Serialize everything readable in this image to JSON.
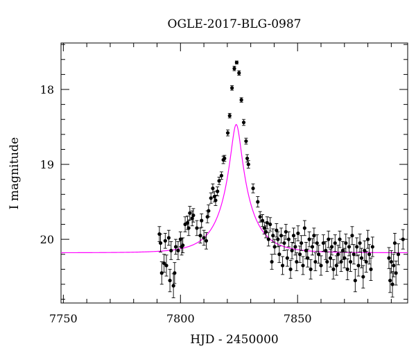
{
  "chart_data": {
    "type": "scatter",
    "title": "OGLE-2017-BLG-0987",
    "xlabel": "HJD - 2450000",
    "ylabel": "I magnitude",
    "xlim": [
      7749,
      7897
    ],
    "ylim": [
      20.85,
      17.38
    ],
    "y_inverted": true,
    "x_ticks": [
      7750,
      7800,
      7850
    ],
    "y_ticks": [
      18,
      19,
      20
    ],
    "x_minor_step": 10,
    "y_minor_step": 0.2,
    "grid": false,
    "legend": "none",
    "model_color": "#ff00ff",
    "point_color": "#000000",
    "model": {
      "t0": 7823.8,
      "u0": 0.165,
      "tE": 12.5,
      "base_mag": 20.18,
      "fs": 0.75
    },
    "points": [
      {
        "x": 7791,
        "y": 19.93,
        "e": 0.1
      },
      {
        "x": 7791.5,
        "y": 20.05,
        "e": 0.12
      },
      {
        "x": 7792,
        "y": 20.45,
        "e": 0.15
      },
      {
        "x": 7793,
        "y": 20.32,
        "e": 0.12
      },
      {
        "x": 7793.5,
        "y": 20.02,
        "e": 0.1
      },
      {
        "x": 7794,
        "y": 20.35,
        "e": 0.14
      },
      {
        "x": 7795,
        "y": 19.98,
        "e": 0.1
      },
      {
        "x": 7795.5,
        "y": 20.55,
        "e": 0.15
      },
      {
        "x": 7796,
        "y": 20.15,
        "e": 0.12
      },
      {
        "x": 7797,
        "y": 20.62,
        "e": 0.16
      },
      {
        "x": 7797.5,
        "y": 20.45,
        "e": 0.14
      },
      {
        "x": 7798,
        "y": 20.1,
        "e": 0.1
      },
      {
        "x": 7799,
        "y": 20.15,
        "e": 0.12
      },
      {
        "x": 7800,
        "y": 20.0,
        "e": 0.1
      },
      {
        "x": 7800.5,
        "y": 20.1,
        "e": 0.11
      },
      {
        "x": 7801,
        "y": 20.08,
        "e": 0.1
      },
      {
        "x": 7802,
        "y": 19.8,
        "e": 0.1
      },
      {
        "x": 7803,
        "y": 19.78,
        "e": 0.09
      },
      {
        "x": 7803.5,
        "y": 19.85,
        "e": 0.1
      },
      {
        "x": 7804,
        "y": 19.65,
        "e": 0.09
      },
      {
        "x": 7805,
        "y": 19.72,
        "e": 0.1
      },
      {
        "x": 7805.5,
        "y": 19.68,
        "e": 0.09
      },
      {
        "x": 7807,
        "y": 19.85,
        "e": 0.1
      },
      {
        "x": 7808.5,
        "y": 19.95,
        "e": 0.1
      },
      {
        "x": 7809,
        "y": 19.75,
        "e": 0.09
      },
      {
        "x": 7810,
        "y": 19.98,
        "e": 0.1
      },
      {
        "x": 7811,
        "y": 20.02,
        "e": 0.11
      },
      {
        "x": 7811.5,
        "y": 19.7,
        "e": 0.08
      },
      {
        "x": 7812,
        "y": 19.62,
        "e": 0.08
      },
      {
        "x": 7813,
        "y": 19.45,
        "e": 0.07
      },
      {
        "x": 7813.8,
        "y": 19.32,
        "e": 0.06
      },
      {
        "x": 7814.5,
        "y": 19.43,
        "e": 0.07
      },
      {
        "x": 7815,
        "y": 19.48,
        "e": 0.07
      },
      {
        "x": 7815.8,
        "y": 19.36,
        "e": 0.06
      },
      {
        "x": 7816.5,
        "y": 19.22,
        "e": 0.05
      },
      {
        "x": 7817.5,
        "y": 19.15,
        "e": 0.05
      },
      {
        "x": 7818.3,
        "y": 18.94,
        "e": 0.05
      },
      {
        "x": 7818.8,
        "y": 18.92,
        "e": 0.04
      },
      {
        "x": 7820.2,
        "y": 18.58,
        "e": 0.04
      },
      {
        "x": 7821,
        "y": 18.35,
        "e": 0.03
      },
      {
        "x": 7822,
        "y": 17.98,
        "e": 0.03
      },
      {
        "x": 7823,
        "y": 17.72,
        "e": 0.03
      },
      {
        "x": 7824,
        "y": 17.64,
        "e": 0.02
      },
      {
        "x": 7825,
        "y": 17.78,
        "e": 0.03
      },
      {
        "x": 7826,
        "y": 18.14,
        "e": 0.03
      },
      {
        "x": 7827,
        "y": 18.44,
        "e": 0.04
      },
      {
        "x": 7828,
        "y": 18.69,
        "e": 0.04
      },
      {
        "x": 7828.5,
        "y": 18.92,
        "e": 0.05
      },
      {
        "x": 7829,
        "y": 19.0,
        "e": 0.05
      },
      {
        "x": 7831,
        "y": 19.32,
        "e": 0.06
      },
      {
        "x": 7833,
        "y": 19.5,
        "e": 0.07
      },
      {
        "x": 7834,
        "y": 19.7,
        "e": 0.07
      },
      {
        "x": 7835,
        "y": 19.75,
        "e": 0.08
      },
      {
        "x": 7835.8,
        "y": 19.85,
        "e": 0.08
      },
      {
        "x": 7836.5,
        "y": 19.9,
        "e": 0.08
      },
      {
        "x": 7837,
        "y": 19.78,
        "e": 0.08
      },
      {
        "x": 7837.6,
        "y": 20.0,
        "e": 0.09
      },
      {
        "x": 7838.3,
        "y": 19.8,
        "e": 0.09
      },
      {
        "x": 7839,
        "y": 20.3,
        "e": 0.1
      },
      {
        "x": 7839.5,
        "y": 19.95,
        "e": 0.09
      },
      {
        "x": 7840.2,
        "y": 20.1,
        "e": 0.1
      },
      {
        "x": 7841,
        "y": 19.88,
        "e": 0.09
      },
      {
        "x": 7841.6,
        "y": 20.0,
        "e": 0.1
      },
      {
        "x": 7842.2,
        "y": 20.2,
        "e": 0.11
      },
      {
        "x": 7843,
        "y": 19.95,
        "e": 0.1
      },
      {
        "x": 7843.6,
        "y": 20.35,
        "e": 0.12
      },
      {
        "x": 7844.3,
        "y": 20.05,
        "e": 0.1
      },
      {
        "x": 7845,
        "y": 19.9,
        "e": 0.1
      },
      {
        "x": 7845.6,
        "y": 20.25,
        "e": 0.11
      },
      {
        "x": 7846.2,
        "y": 20.0,
        "e": 0.1
      },
      {
        "x": 7847,
        "y": 20.4,
        "e": 0.12
      },
      {
        "x": 7847.6,
        "y": 20.15,
        "e": 0.11
      },
      {
        "x": 7848.3,
        "y": 19.95,
        "e": 0.1
      },
      {
        "x": 7849,
        "y": 20.1,
        "e": 0.11
      },
      {
        "x": 7849.6,
        "y": 20.3,
        "e": 0.12
      },
      {
        "x": 7850.2,
        "y": 19.92,
        "e": 0.1
      },
      {
        "x": 7851,
        "y": 20.2,
        "e": 0.11
      },
      {
        "x": 7851.6,
        "y": 20.05,
        "e": 0.1
      },
      {
        "x": 7852.3,
        "y": 20.35,
        "e": 0.12
      },
      {
        "x": 7853,
        "y": 19.85,
        "e": 0.1
      },
      {
        "x": 7853.6,
        "y": 20.15,
        "e": 0.11
      },
      {
        "x": 7854.3,
        "y": 20.25,
        "e": 0.12
      },
      {
        "x": 7855,
        "y": 20.0,
        "e": 0.1
      },
      {
        "x": 7855.6,
        "y": 20.4,
        "e": 0.13
      },
      {
        "x": 7856.3,
        "y": 20.1,
        "e": 0.11
      },
      {
        "x": 7857,
        "y": 19.95,
        "e": 0.1
      },
      {
        "x": 7857.6,
        "y": 20.3,
        "e": 0.12
      },
      {
        "x": 7858.3,
        "y": 20.05,
        "e": 0.11
      },
      {
        "x": 7859,
        "y": 20.2,
        "e": 0.12
      },
      {
        "x": 7860,
        "y": 20.35,
        "e": 0.13
      },
      {
        "x": 7861,
        "y": 20.05,
        "e": 0.11
      },
      {
        "x": 7862,
        "y": 20.15,
        "e": 0.12
      },
      {
        "x": 7862.6,
        "y": 20.3,
        "e": 0.13
      },
      {
        "x": 7863.2,
        "y": 20.0,
        "e": 0.11
      },
      {
        "x": 7864,
        "y": 20.25,
        "e": 0.12
      },
      {
        "x": 7864.6,
        "y": 20.1,
        "e": 0.11
      },
      {
        "x": 7865.3,
        "y": 20.4,
        "e": 0.13
      },
      {
        "x": 7866,
        "y": 20.05,
        "e": 0.11
      },
      {
        "x": 7866.6,
        "y": 20.35,
        "e": 0.13
      },
      {
        "x": 7867.3,
        "y": 20.2,
        "e": 0.12
      },
      {
        "x": 7868,
        "y": 20.0,
        "e": 0.11
      },
      {
        "x": 7868.6,
        "y": 20.3,
        "e": 0.13
      },
      {
        "x": 7869.3,
        "y": 20.15,
        "e": 0.12
      },
      {
        "x": 7870,
        "y": 20.25,
        "e": 0.13
      },
      {
        "x": 7870.6,
        "y": 20.05,
        "e": 0.12
      },
      {
        "x": 7871.3,
        "y": 20.4,
        "e": 0.14
      },
      {
        "x": 7872,
        "y": 20.1,
        "e": 0.12
      },
      {
        "x": 7872.6,
        "y": 20.3,
        "e": 0.13
      },
      {
        "x": 7873.3,
        "y": 19.95,
        "e": 0.12
      },
      {
        "x": 7874,
        "y": 20.2,
        "e": 0.13
      },
      {
        "x": 7874.6,
        "y": 20.55,
        "e": 0.15
      },
      {
        "x": 7875.3,
        "y": 20.1,
        "e": 0.12
      },
      {
        "x": 7876,
        "y": 20.35,
        "e": 0.14
      },
      {
        "x": 7876.6,
        "y": 20.05,
        "e": 0.12
      },
      {
        "x": 7877.3,
        "y": 20.25,
        "e": 0.13
      },
      {
        "x": 7878,
        "y": 20.5,
        "e": 0.15
      },
      {
        "x": 7878.6,
        "y": 20.15,
        "e": 0.13
      },
      {
        "x": 7879.3,
        "y": 20.3,
        "e": 0.14
      },
      {
        "x": 7880,
        "y": 20.0,
        "e": 0.12
      },
      {
        "x": 7880.6,
        "y": 20.2,
        "e": 0.13
      },
      {
        "x": 7881.3,
        "y": 20.4,
        "e": 0.15
      },
      {
        "x": 7882,
        "y": 20.1,
        "e": 0.13
      },
      {
        "x": 7889,
        "y": 20.25,
        "e": 0.14
      },
      {
        "x": 7889.5,
        "y": 20.55,
        "e": 0.16
      },
      {
        "x": 7890,
        "y": 20.3,
        "e": 0.15
      },
      {
        "x": 7890.5,
        "y": 20.6,
        "e": 0.17
      },
      {
        "x": 7891,
        "y": 20.35,
        "e": 0.15
      },
      {
        "x": 7891.5,
        "y": 20.05,
        "e": 0.13
      },
      {
        "x": 7892,
        "y": 20.45,
        "e": 0.16
      },
      {
        "x": 7893,
        "y": 20.2,
        "e": 0.14
      },
      {
        "x": 7895,
        "y": 20.0,
        "e": 0.13
      }
    ]
  }
}
